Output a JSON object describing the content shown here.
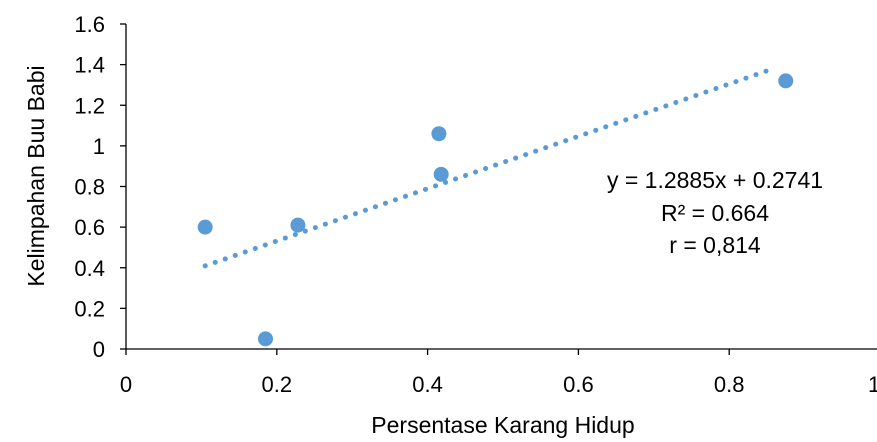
{
  "chart_data": {
    "type": "scatter",
    "xlabel": "Persentase Karang Hidup",
    "ylabel": "Kelimpahan Buu Babi",
    "xlim": [
      0,
      1
    ],
    "ylim": [
      0,
      1.6
    ],
    "x_ticks": [
      0,
      0.2,
      0.4,
      0.6,
      0.8,
      1
    ],
    "x_tick_labels": [
      "0",
      "0.2",
      "0.4",
      "0.6",
      "0.8",
      "1"
    ],
    "y_ticks": [
      0,
      0.2,
      0.4,
      0.6,
      0.8,
      1,
      1.2,
      1.4,
      1.6
    ],
    "y_tick_labels": [
      "0",
      "0.2",
      "0.4",
      "0.6",
      "0.8",
      "1",
      "1.2",
      "1.4",
      "1.6"
    ],
    "grid": false,
    "legend": "none",
    "colors": {
      "points": "#5b9bd5",
      "trendline": "#5b9bd5",
      "axis": "#000000"
    },
    "points": [
      {
        "x": 0.105,
        "y": 0.6
      },
      {
        "x": 0.185,
        "y": 0.05
      },
      {
        "x": 0.228,
        "y": 0.61
      },
      {
        "x": 0.415,
        "y": 1.06
      },
      {
        "x": 0.418,
        "y": 0.86
      },
      {
        "x": 0.875,
        "y": 1.32
      }
    ],
    "trendline": {
      "type": "linear",
      "slope": 1.2885,
      "intercept": 0.2741,
      "x_range": [
        0.105,
        0.86
      ],
      "style": "dotted"
    },
    "annotations": [
      "y = 1.2885x + 0.2741",
      "R² = 0.664",
      "r = 0,814"
    ]
  }
}
